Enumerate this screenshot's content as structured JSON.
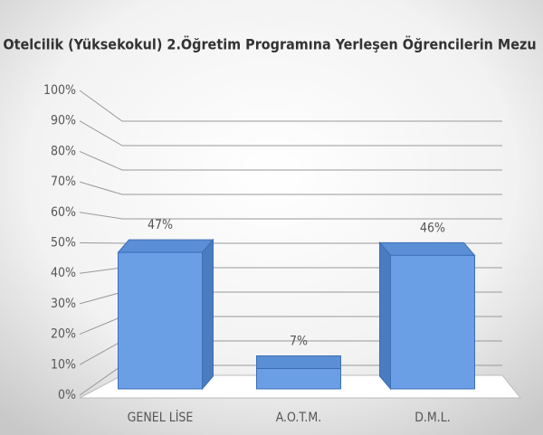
{
  "chart_data": {
    "type": "bar3d",
    "title": "Otelcilik (Yüksekokul) 2.Öğretim Programına Yerleşen Öğrencilerin Mezu",
    "categories": [
      "GENEL LİSE",
      "A.O.T.M.",
      "D.M.L."
    ],
    "values": [
      47,
      7,
      46
    ],
    "value_labels": [
      "47%",
      "7%",
      "46%"
    ],
    "color": "#6a9fe6",
    "ylim": [
      0,
      100
    ],
    "yticks": [
      {
        "value": 0,
        "label": "0%"
      },
      {
        "value": 10,
        "label": "10%"
      },
      {
        "value": 20,
        "label": "20%"
      },
      {
        "value": 30,
        "label": "30%"
      },
      {
        "value": 40,
        "label": "40%"
      },
      {
        "value": 50,
        "label": "50%"
      },
      {
        "value": 60,
        "label": "60%"
      },
      {
        "value": 70,
        "label": "70%"
      },
      {
        "value": 80,
        "label": "80%"
      },
      {
        "value": 90,
        "label": "90%"
      },
      {
        "value": 100,
        "label": "100%"
      }
    ],
    "grid": true
  }
}
